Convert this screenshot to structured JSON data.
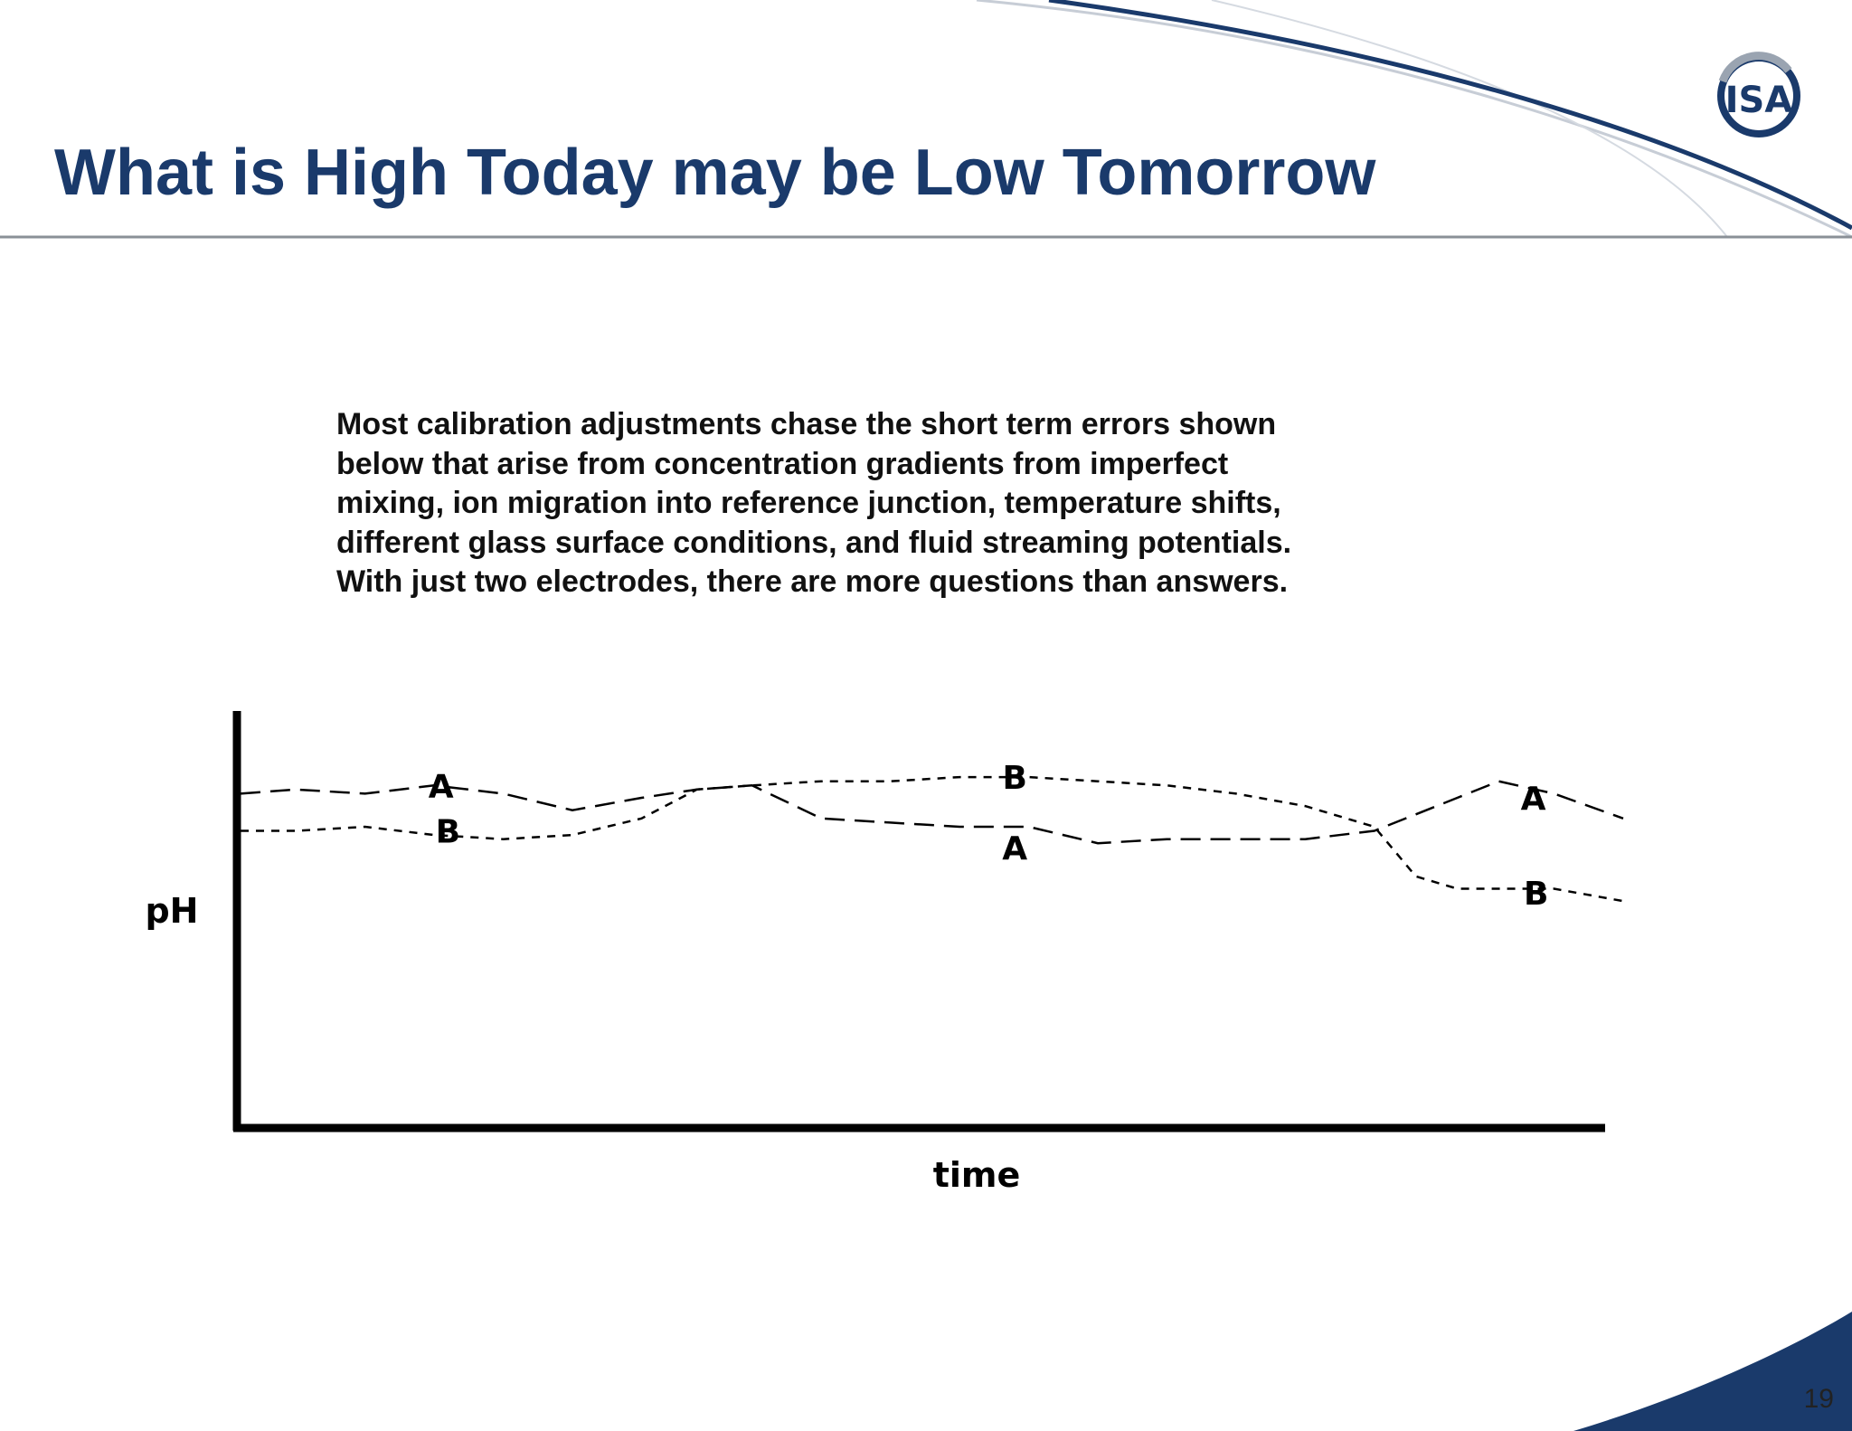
{
  "slide": {
    "title": "What is High Today may be Low Tomorrow",
    "body_lines": [
      "Most calibration adjustments chase the short term errors shown",
      "below that arise from concentration gradients from imperfect",
      "mixing, ion migration into reference junction, temperature shifts,",
      "different glass surface conditions, and fluid streaming potentials.",
      "With just two electrodes, there are more questions than answers."
    ],
    "page_number": "19",
    "logo_text": "ISA"
  },
  "colors": {
    "title": "#1a3a6b",
    "brand_navy": "#1a3a6b",
    "text": "#111111",
    "rule": "#8a9097"
  },
  "chart_data": {
    "type": "line",
    "title": "",
    "xlabel": "time",
    "ylabel": "pH",
    "grid": false,
    "line_style": "dashed",
    "xlim": [
      0,
      100
    ],
    "ylim": [
      0,
      100
    ],
    "series": [
      {
        "name": "A",
        "x": [
          0,
          4,
          9,
          14,
          19,
          24,
          29,
          33,
          37,
          42,
          47,
          52,
          57,
          62,
          67,
          72,
          77,
          82,
          85,
          88,
          91,
          95,
          100
        ],
        "y": [
          80,
          81,
          80,
          82,
          80,
          76,
          79,
          81,
          82,
          74,
          73,
          72,
          72,
          68,
          69,
          69,
          69,
          71,
          75,
          79,
          83,
          80,
          74
        ]
      },
      {
        "name": "B",
        "x": [
          0,
          4,
          9,
          14,
          19,
          24,
          29,
          33,
          37,
          42,
          47,
          52,
          57,
          62,
          67,
          72,
          77,
          82,
          85,
          88,
          91,
          95,
          100
        ],
        "y": [
          71,
          71,
          72,
          70,
          69,
          70,
          74,
          81,
          82,
          83,
          83,
          84,
          84,
          83,
          82,
          80,
          77,
          72,
          60,
          57,
          57,
          57,
          54
        ]
      }
    ],
    "annotations": [
      {
        "text": "A",
        "x": 14.5,
        "y": 82
      },
      {
        "text": "B",
        "x": 15,
        "y": 71
      },
      {
        "text": "B",
        "x": 56,
        "y": 84
      },
      {
        "text": "A",
        "x": 56,
        "y": 67
      },
      {
        "text": "A",
        "x": 93.5,
        "y": 79
      },
      {
        "text": "B",
        "x": 93.7,
        "y": 56
      }
    ]
  }
}
